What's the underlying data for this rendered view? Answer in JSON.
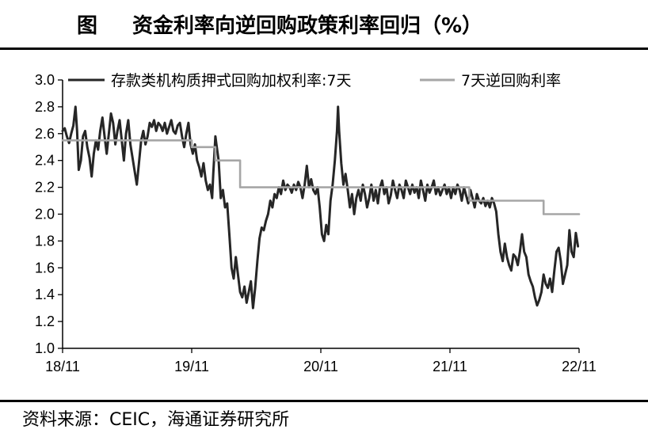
{
  "header": {
    "fig_label": "图",
    "title": "资金利率向逆回购政策利率回归（%）"
  },
  "footer": {
    "source": "资料来源：CEIC，海通证券研究所"
  },
  "chart_data": {
    "type": "line",
    "ylim": [
      1.0,
      3.0
    ],
    "y_ticks": [
      "3.0",
      "2.8",
      "2.6",
      "2.4",
      "2.2",
      "2.0",
      "1.8",
      "1.6",
      "1.4",
      "1.2",
      "1.0"
    ],
    "x_range": [
      0,
      48
    ],
    "x_ticks": [
      {
        "label": "18/11",
        "x": 0
      },
      {
        "label": "19/11",
        "x": 12
      },
      {
        "label": "20/11",
        "x": 24
      },
      {
        "label": "21/11",
        "x": 36
      },
      {
        "label": "22/11",
        "x": 48
      }
    ],
    "legend_position": "top",
    "series": [
      {
        "name": "存款类机构质押式回购加权利率:7天",
        "color": "#262626",
        "points": [
          [
            0,
            2.62
          ],
          [
            0.2,
            2.64
          ],
          [
            0.4,
            2.58
          ],
          [
            0.6,
            2.53
          ],
          [
            0.8,
            2.6
          ],
          [
            1.0,
            2.66
          ],
          [
            1.2,
            2.8
          ],
          [
            1.35,
            2.62
          ],
          [
            1.5,
            2.33
          ],
          [
            1.7,
            2.4
          ],
          [
            1.9,
            2.58
          ],
          [
            2.1,
            2.62
          ],
          [
            2.3,
            2.5
          ],
          [
            2.5,
            2.42
          ],
          [
            2.7,
            2.28
          ],
          [
            2.9,
            2.45
          ],
          [
            3.1,
            2.55
          ],
          [
            3.3,
            2.48
          ],
          [
            3.5,
            2.62
          ],
          [
            3.7,
            2.72
          ],
          [
            3.9,
            2.58
          ],
          [
            4.1,
            2.45
          ],
          [
            4.3,
            2.6
          ],
          [
            4.5,
            2.75
          ],
          [
            4.7,
            2.68
          ],
          [
            4.9,
            2.52
          ],
          [
            5.1,
            2.62
          ],
          [
            5.3,
            2.7
          ],
          [
            5.5,
            2.55
          ],
          [
            5.7,
            2.4
          ],
          [
            5.9,
            2.6
          ],
          [
            6.1,
            2.7
          ],
          [
            6.3,
            2.52
          ],
          [
            6.5,
            2.42
          ],
          [
            6.7,
            2.32
          ],
          [
            6.9,
            2.22
          ],
          [
            7.1,
            2.38
          ],
          [
            7.3,
            2.55
          ],
          [
            7.5,
            2.62
          ],
          [
            7.7,
            2.52
          ],
          [
            7.9,
            2.58
          ],
          [
            8.1,
            2.68
          ],
          [
            8.3,
            2.65
          ],
          [
            8.5,
            2.7
          ],
          [
            8.7,
            2.62
          ],
          [
            8.9,
            2.68
          ],
          [
            9.1,
            2.66
          ],
          [
            9.3,
            2.62
          ],
          [
            9.5,
            2.68
          ],
          [
            9.7,
            2.6
          ],
          [
            9.9,
            2.65
          ],
          [
            10.1,
            2.7
          ],
          [
            10.3,
            2.62
          ],
          [
            10.5,
            2.6
          ],
          [
            10.7,
            2.66
          ],
          [
            10.9,
            2.68
          ],
          [
            11.1,
            2.58
          ],
          [
            11.3,
            2.5
          ],
          [
            11.5,
            2.6
          ],
          [
            11.7,
            2.68
          ],
          [
            11.9,
            2.52
          ],
          [
            12.1,
            2.45
          ],
          [
            12.3,
            2.52
          ],
          [
            12.5,
            2.4
          ],
          [
            12.7,
            2.35
          ],
          [
            12.9,
            2.28
          ],
          [
            13.1,
            2.38
          ],
          [
            13.3,
            2.25
          ],
          [
            13.5,
            2.18
          ],
          [
            13.7,
            2.22
          ],
          [
            13.9,
            2.12
          ],
          [
            14.0,
            2.3
          ],
          [
            14.2,
            2.58
          ],
          [
            14.3,
            2.52
          ],
          [
            14.5,
            2.4
          ],
          [
            14.7,
            2.12
          ],
          [
            14.9,
            2.18
          ],
          [
            15.1,
            2.05
          ],
          [
            15.3,
            2.08
          ],
          [
            15.5,
            1.85
          ],
          [
            15.7,
            1.6
          ],
          [
            15.9,
            1.52
          ],
          [
            16.1,
            1.68
          ],
          [
            16.3,
            1.55
          ],
          [
            16.5,
            1.42
          ],
          [
            16.7,
            1.38
          ],
          [
            16.9,
            1.46
          ],
          [
            17.1,
            1.34
          ],
          [
            17.3,
            1.42
          ],
          [
            17.5,
            1.5
          ],
          [
            17.7,
            1.3
          ],
          [
            17.9,
            1.45
          ],
          [
            18.1,
            1.65
          ],
          [
            18.3,
            1.82
          ],
          [
            18.5,
            1.9
          ],
          [
            18.7,
            1.88
          ],
          [
            18.9,
            1.95
          ],
          [
            19.1,
            2.0
          ],
          [
            19.3,
            2.1
          ],
          [
            19.5,
            2.05
          ],
          [
            19.7,
            2.15
          ],
          [
            19.9,
            2.12
          ],
          [
            20.1,
            2.2
          ],
          [
            20.3,
            2.15
          ],
          [
            20.5,
            2.25
          ],
          [
            20.7,
            2.18
          ],
          [
            20.9,
            2.22
          ],
          [
            21.1,
            2.2
          ],
          [
            21.3,
            2.16
          ],
          [
            21.5,
            2.22
          ],
          [
            21.7,
            2.18
          ],
          [
            21.9,
            2.24
          ],
          [
            22.1,
            2.2
          ],
          [
            22.3,
            2.12
          ],
          [
            22.5,
            2.22
          ],
          [
            22.7,
            2.36
          ],
          [
            22.9,
            2.2
          ],
          [
            23.1,
            2.26
          ],
          [
            23.3,
            2.18
          ],
          [
            23.5,
            2.15
          ],
          [
            23.7,
            2.2
          ],
          [
            23.9,
            2.05
          ],
          [
            24.1,
            1.85
          ],
          [
            24.3,
            1.8
          ],
          [
            24.5,
            1.92
          ],
          [
            24.7,
            1.85
          ],
          [
            24.9,
            2.1
          ],
          [
            25.1,
            2.22
          ],
          [
            25.3,
            2.4
          ],
          [
            25.5,
            2.62
          ],
          [
            25.6,
            2.8
          ],
          [
            25.7,
            2.62
          ],
          [
            25.9,
            2.38
          ],
          [
            26.1,
            2.22
          ],
          [
            26.3,
            2.3
          ],
          [
            26.5,
            2.18
          ],
          [
            26.7,
            2.05
          ],
          [
            26.9,
            2.15
          ],
          [
            27.1,
            2.0
          ],
          [
            27.3,
            2.12
          ],
          [
            27.5,
            2.18
          ],
          [
            27.7,
            2.1
          ],
          [
            27.9,
            2.22
          ],
          [
            28.1,
            2.15
          ],
          [
            28.3,
            2.05
          ],
          [
            28.5,
            2.12
          ],
          [
            28.7,
            2.22
          ],
          [
            28.9,
            2.1
          ],
          [
            29.1,
            2.18
          ],
          [
            29.3,
            2.08
          ],
          [
            29.5,
            2.2
          ],
          [
            29.7,
            2.25
          ],
          [
            29.9,
            2.15
          ],
          [
            30.1,
            2.2
          ],
          [
            30.3,
            2.08
          ],
          [
            30.5,
            2.14
          ],
          [
            30.7,
            2.25
          ],
          [
            30.9,
            2.18
          ],
          [
            31.1,
            2.12
          ],
          [
            31.3,
            2.22
          ],
          [
            31.5,
            2.18
          ],
          [
            31.7,
            2.12
          ],
          [
            31.9,
            2.25
          ],
          [
            32.1,
            2.2
          ],
          [
            32.3,
            2.15
          ],
          [
            32.5,
            2.22
          ],
          [
            32.7,
            2.16
          ],
          [
            32.9,
            2.2
          ],
          [
            33.1,
            2.12
          ],
          [
            33.3,
            2.25
          ],
          [
            33.5,
            2.18
          ],
          [
            33.7,
            2.1
          ],
          [
            33.9,
            2.22
          ],
          [
            34.1,
            2.16
          ],
          [
            34.3,
            2.2
          ],
          [
            34.5,
            2.25
          ],
          [
            34.7,
            2.15
          ],
          [
            34.9,
            2.2
          ],
          [
            35.1,
            2.14
          ],
          [
            35.3,
            2.18
          ],
          [
            35.5,
            2.22
          ],
          [
            35.7,
            2.15
          ],
          [
            35.9,
            2.2
          ],
          [
            36.1,
            2.12
          ],
          [
            36.3,
            2.2
          ],
          [
            36.5,
            2.15
          ],
          [
            36.7,
            2.22
          ],
          [
            36.9,
            2.18
          ],
          [
            37.1,
            2.1
          ],
          [
            37.3,
            2.2
          ],
          [
            37.5,
            2.14
          ],
          [
            37.7,
            2.08
          ],
          [
            37.9,
            2.18
          ],
          [
            38.1,
            2.12
          ],
          [
            38.3,
            2.05
          ],
          [
            38.5,
            2.15
          ],
          [
            38.7,
            2.1
          ],
          [
            38.9,
            2.08
          ],
          [
            39.1,
            2.12
          ],
          [
            39.3,
            2.06
          ],
          [
            39.5,
            2.1
          ],
          [
            39.7,
            2.05
          ],
          [
            39.9,
            2.12
          ],
          [
            40.1,
            2.08
          ],
          [
            40.3,
            2.02
          ],
          [
            40.5,
            1.85
          ],
          [
            40.7,
            1.72
          ],
          [
            40.9,
            1.65
          ],
          [
            41.1,
            1.78
          ],
          [
            41.3,
            1.68
          ],
          [
            41.5,
            1.62
          ],
          [
            41.7,
            1.58
          ],
          [
            41.9,
            1.7
          ],
          [
            42.1,
            1.68
          ],
          [
            42.3,
            1.62
          ],
          [
            42.5,
            1.72
          ],
          [
            42.7,
            1.85
          ],
          [
            42.9,
            1.72
          ],
          [
            43.1,
            1.68
          ],
          [
            43.3,
            1.55
          ],
          [
            43.5,
            1.5
          ],
          [
            43.7,
            1.46
          ],
          [
            43.9,
            1.38
          ],
          [
            44.1,
            1.32
          ],
          [
            44.3,
            1.36
          ],
          [
            44.5,
            1.42
          ],
          [
            44.7,
            1.55
          ],
          [
            44.9,
            1.48
          ],
          [
            45.1,
            1.45
          ],
          [
            45.3,
            1.52
          ],
          [
            45.5,
            1.42
          ],
          [
            45.7,
            1.58
          ],
          [
            45.9,
            1.72
          ],
          [
            46.1,
            1.75
          ],
          [
            46.3,
            1.65
          ],
          [
            46.5,
            1.48
          ],
          [
            46.7,
            1.55
          ],
          [
            46.9,
            1.62
          ],
          [
            47.1,
            1.88
          ],
          [
            47.3,
            1.72
          ],
          [
            47.5,
            1.68
          ],
          [
            47.7,
            1.86
          ],
          [
            47.9,
            1.76
          ]
        ]
      },
      {
        "name": "7天逆回购利率",
        "color": "#a6a6a6",
        "points": [
          [
            0,
            2.55
          ],
          [
            12,
            2.55
          ],
          [
            12,
            2.5
          ],
          [
            14.2,
            2.5
          ],
          [
            14.2,
            2.4
          ],
          [
            16.5,
            2.4
          ],
          [
            16.5,
            2.2
          ],
          [
            37.8,
            2.2
          ],
          [
            37.8,
            2.1
          ],
          [
            44.7,
            2.1
          ],
          [
            44.7,
            2.0
          ],
          [
            48,
            2.0
          ]
        ]
      }
    ]
  }
}
